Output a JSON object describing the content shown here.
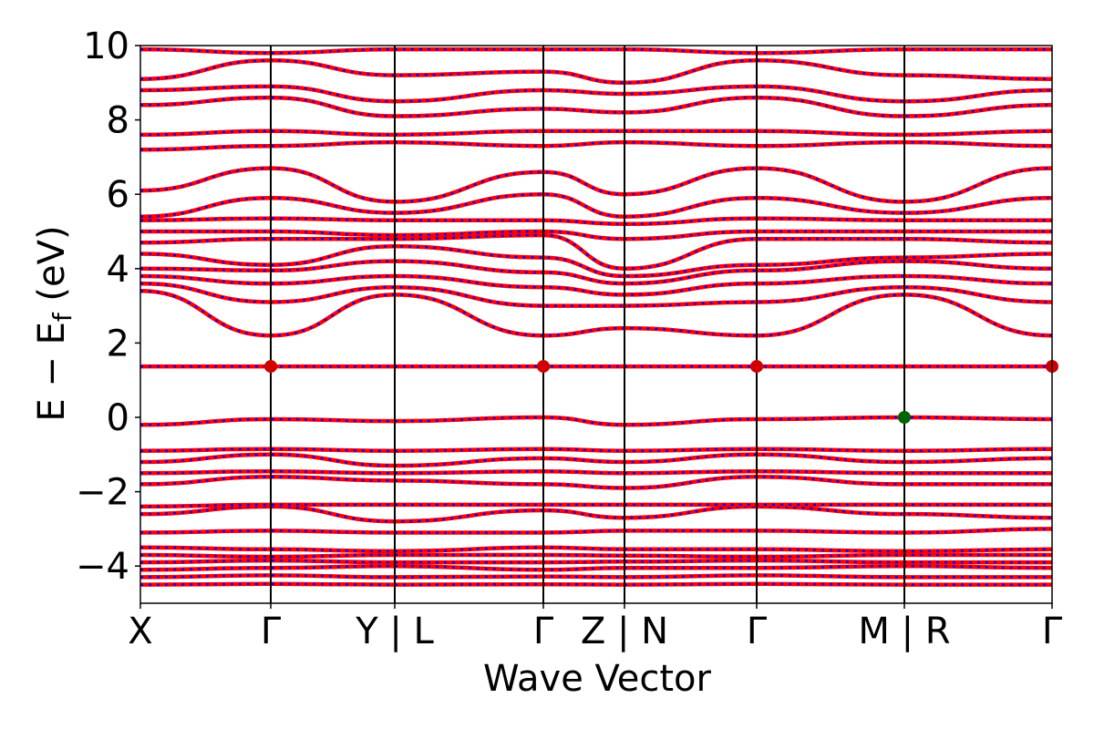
{
  "chart_data": {
    "type": "line",
    "title": "",
    "xlabel": "Wave Vector",
    "ylabel": {
      "main": "E − E",
      "sub": "f",
      "unit": " (eV)"
    },
    "ylim": [
      -5,
      10
    ],
    "yticks": [
      -4,
      -2,
      0,
      2,
      4,
      6,
      8,
      10
    ],
    "ytick_labels": [
      "−4",
      "−2",
      "0",
      "2",
      "4",
      "6",
      "8",
      "10"
    ],
    "kpath": {
      "xlim": [
        0,
        1
      ],
      "positions": [
        0,
        0.143,
        0.279,
        0.442,
        0.531,
        0.676,
        0.838,
        1.0
      ],
      "labels": [
        "X",
        "Γ",
        "Y | L",
        "Γ",
        "Z | N",
        "Γ",
        "M | R",
        "Γ"
      ]
    },
    "grid": false,
    "colors": {
      "primary": "#ff0000",
      "secondary": "#0000ff",
      "cbm": "#d00000",
      "vbm": "#006400"
    },
    "series": [
      {
        "values": [
          -4.5,
          -4.48,
          -4.5,
          -4.49,
          -4.5,
          -4.48,
          -4.5,
          -4.5
        ]
      },
      {
        "values": [
          -4.3,
          -4.25,
          -4.3,
          -4.28,
          -4.3,
          -4.25,
          -4.3,
          -4.3
        ]
      },
      {
        "values": [
          -4.1,
          -4.05,
          -4.0,
          -4.1,
          -4.05,
          -4.05,
          -4.0,
          -4.05
        ]
      },
      {
        "values": [
          -3.9,
          -3.85,
          -3.9,
          -3.9,
          -3.88,
          -3.85,
          -3.9,
          -3.9
        ]
      },
      {
        "values": [
          -3.7,
          -3.75,
          -3.7,
          -3.7,
          -3.72,
          -3.75,
          -3.7,
          -3.7
        ]
      },
      {
        "values": [
          -3.5,
          -3.55,
          -3.6,
          -3.5,
          -3.55,
          -3.55,
          -3.6,
          -3.55
        ]
      },
      {
        "values": [
          -3.1,
          -3.05,
          -3.1,
          -3.1,
          -3.05,
          -3.05,
          -3.1,
          -3.0
        ]
      },
      {
        "values": [
          -2.6,
          -2.4,
          -2.8,
          -2.5,
          -2.7,
          -2.4,
          -2.6,
          -2.7
        ]
      },
      {
        "values": [
          -2.4,
          -2.35,
          -2.35,
          -2.35,
          -2.35,
          -2.35,
          -2.35,
          -2.35
        ]
      },
      {
        "values": [
          -1.8,
          -1.6,
          -1.7,
          -1.8,
          -1.9,
          -1.6,
          -1.8,
          -1.8
        ]
      },
      {
        "values": [
          -1.5,
          -1.45,
          -1.5,
          -1.45,
          -1.5,
          -1.45,
          -1.5,
          -1.5
        ]
      },
      {
        "values": [
          -1.2,
          -1.0,
          -1.3,
          -1.1,
          -1.2,
          -1.0,
          -1.2,
          -1.1
        ]
      },
      {
        "values": [
          -0.9,
          -0.85,
          -0.9,
          -0.85,
          -0.9,
          -0.85,
          -0.9,
          -0.85
        ]
      },
      {
        "values": [
          -0.2,
          -0.05,
          -0.1,
          0.0,
          -0.2,
          -0.05,
          0.0,
          -0.05
        ]
      },
      {
        "values": [
          1.37,
          1.37,
          1.37,
          1.37,
          1.37,
          1.37,
          1.37,
          1.37
        ]
      },
      {
        "values": [
          3.4,
          2.2,
          3.3,
          2.2,
          2.4,
          2.2,
          3.3,
          2.2
        ]
      },
      {
        "values": [
          3.6,
          3.1,
          3.5,
          3.0,
          3.0,
          3.1,
          3.5,
          3.1
        ]
      },
      {
        "values": [
          3.8,
          3.6,
          3.8,
          3.5,
          3.3,
          3.6,
          3.8,
          3.6
        ]
      },
      {
        "values": [
          4.0,
          3.95,
          4.2,
          3.9,
          3.6,
          3.95,
          4.2,
          4.0
        ]
      },
      {
        "values": [
          4.4,
          4.1,
          4.6,
          4.3,
          3.8,
          4.1,
          4.3,
          4.4
        ]
      },
      {
        "values": [
          4.7,
          4.8,
          4.8,
          4.9,
          4.0,
          4.8,
          4.8,
          4.7
        ]
      },
      {
        "values": [
          5.0,
          5.0,
          4.9,
          5.0,
          4.8,
          5.0,
          5.0,
          5.0
        ]
      },
      {
        "values": [
          5.3,
          5.35,
          5.3,
          5.3,
          5.2,
          5.35,
          5.3,
          5.3
        ]
      },
      {
        "values": [
          5.4,
          5.9,
          5.5,
          6.0,
          5.4,
          5.9,
          5.5,
          5.9
        ]
      },
      {
        "values": [
          6.1,
          6.7,
          5.8,
          6.6,
          6.0,
          6.7,
          5.8,
          6.7
        ]
      },
      {
        "values": [
          7.2,
          7.3,
          7.4,
          7.3,
          7.4,
          7.3,
          7.4,
          7.3
        ]
      },
      {
        "values": [
          7.6,
          7.7,
          7.6,
          7.7,
          7.7,
          7.7,
          7.6,
          7.7
        ]
      },
      {
        "values": [
          8.4,
          8.6,
          8.1,
          8.3,
          8.2,
          8.6,
          8.1,
          8.4
        ]
      },
      {
        "values": [
          8.8,
          8.9,
          8.5,
          8.8,
          8.7,
          8.9,
          8.5,
          8.8
        ]
      },
      {
        "values": [
          9.1,
          9.6,
          9.2,
          9.3,
          9.0,
          9.6,
          9.2,
          9.1
        ]
      },
      {
        "values": [
          9.9,
          9.8,
          9.9,
          9.9,
          9.9,
          9.8,
          9.9,
          9.9
        ]
      }
    ],
    "markers": [
      {
        "x": 0.143,
        "y": 1.37,
        "role": "cbm"
      },
      {
        "x": 0.442,
        "y": 1.37,
        "role": "cbm"
      },
      {
        "x": 0.676,
        "y": 1.37,
        "role": "cbm"
      },
      {
        "x": 1.0,
        "y": 1.37,
        "role": "cbm"
      },
      {
        "x": 0.838,
        "y": 0.0,
        "role": "vbm"
      }
    ]
  }
}
